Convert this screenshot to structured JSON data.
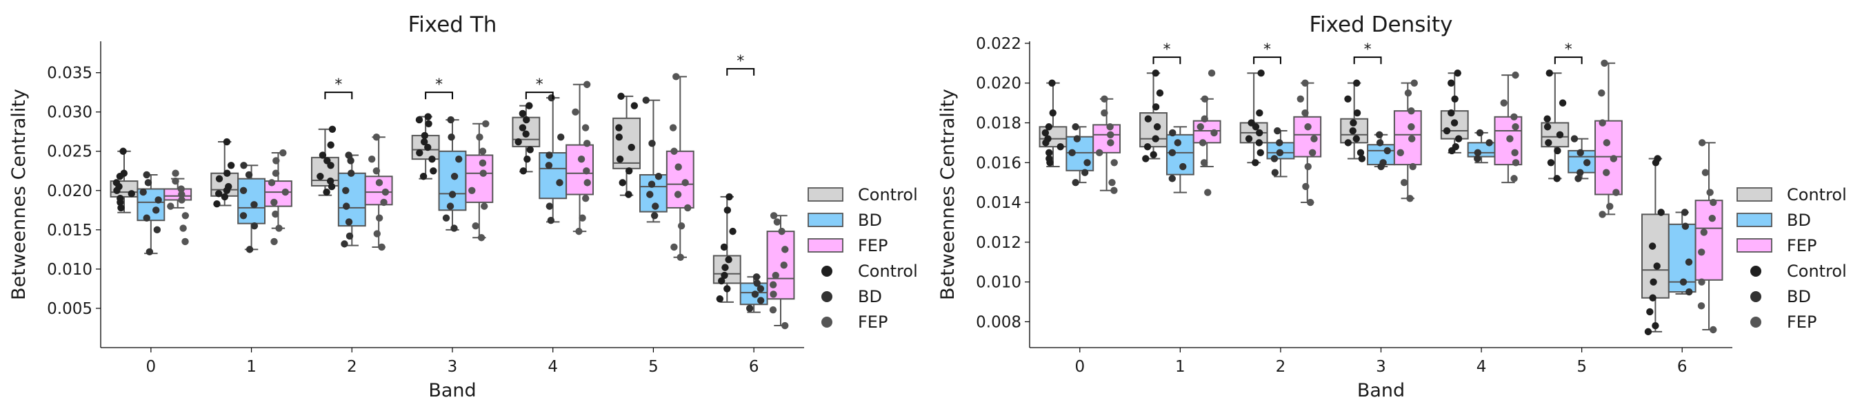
{
  "chart_data": [
    {
      "type": "box",
      "title": "Fixed Th",
      "xlabel": "Band",
      "ylabel": "Betweennes Centrality",
      "categories": [
        "0",
        "1",
        "2",
        "3",
        "4",
        "5",
        "6"
      ],
      "ylim": [
        0.0,
        0.039
      ],
      "yticks": [
        0.005,
        0.01,
        0.015,
        0.02,
        0.025,
        0.03,
        0.035
      ],
      "ytick_labels": [
        "0.005",
        "0.010",
        "0.015",
        "0.020",
        "0.025",
        "0.030",
        "0.035"
      ],
      "grid": false,
      "legend_position": "right",
      "significance": [
        {
          "band": "2",
          "label": "*",
          "y": 0.0325
        },
        {
          "band": "3",
          "label": "*",
          "y": 0.0325
        },
        {
          "band": "4",
          "label": "*",
          "y": 0.0325
        },
        {
          "band": "6",
          "label": "*",
          "y": 0.0355
        }
      ],
      "series": [
        {
          "name": "Control",
          "color": "#d3d3d3",
          "boxes": [
            {
              "q1": 0.0192,
              "median": 0.0198,
              "q3": 0.0212,
              "whislo": 0.0172,
              "whishi": 0.025
            },
            {
              "q1": 0.0193,
              "median": 0.0201,
              "q3": 0.0222,
              "whislo": 0.0181,
              "whishi": 0.0262
            },
            {
              "q1": 0.0206,
              "median": 0.0213,
              "q3": 0.0242,
              "whislo": 0.0194,
              "whishi": 0.0278
            },
            {
              "q1": 0.024,
              "median": 0.0252,
              "q3": 0.027,
              "whislo": 0.0215,
              "whishi": 0.0294
            },
            {
              "q1": 0.0256,
              "median": 0.0265,
              "q3": 0.0293,
              "whislo": 0.0224,
              "whishi": 0.0308
            },
            {
              "q1": 0.0228,
              "median": 0.0235,
              "q3": 0.0292,
              "whislo": 0.0194,
              "whishi": 0.032
            },
            {
              "q1": 0.0082,
              "median": 0.0094,
              "q3": 0.0117,
              "whislo": 0.0058,
              "whishi": 0.0192
            }
          ],
          "points": [
            [
              0.025,
              0.0222,
              0.0218,
              0.021,
              0.0205,
              0.02,
              0.0196,
              0.019,
              0.0185,
              0.0178
            ],
            [
              0.0262,
              0.0232,
              0.0222,
              0.0215,
              0.0205,
              0.02,
              0.0196,
              0.0192,
              0.0183
            ],
            [
              0.0278,
              0.0258,
              0.0245,
              0.0238,
              0.0232,
              0.0218,
              0.0212,
              0.0205,
              0.0198
            ],
            [
              0.0294,
              0.029,
              0.0285,
              0.027,
              0.0262,
              0.0255,
              0.0248,
              0.024,
              0.0225,
              0.0218
            ],
            [
              0.0308,
              0.0298,
              0.029,
              0.028,
              0.0272,
              0.0262,
              0.0252,
              0.024,
              0.0225
            ],
            [
              0.032,
              0.0308,
              0.028,
              0.0268,
              0.0255,
              0.024,
              0.0225,
              0.021,
              0.0195
            ],
            [
              0.0192,
              0.0175,
              0.0148,
              0.0128,
              0.0112,
              0.0102,
              0.0092,
              0.0085,
              0.0075,
              0.0062
            ]
          ]
        },
        {
          "name": "BD",
          "color": "#87cefa",
          "boxes": [
            {
              "q1": 0.0162,
              "median": 0.0185,
              "q3": 0.0202,
              "whislo": 0.012,
              "whishi": 0.022
            },
            {
              "q1": 0.0158,
              "median": 0.0178,
              "q3": 0.0215,
              "whislo": 0.0125,
              "whishi": 0.0232
            },
            {
              "q1": 0.0155,
              "median": 0.0178,
              "q3": 0.0222,
              "whislo": 0.013,
              "whishi": 0.0245
            },
            {
              "q1": 0.0175,
              "median": 0.0196,
              "q3": 0.025,
              "whislo": 0.015,
              "whishi": 0.029
            },
            {
              "q1": 0.019,
              "median": 0.0228,
              "q3": 0.0248,
              "whislo": 0.016,
              "whishi": 0.0318
            },
            {
              "q1": 0.0173,
              "median": 0.0205,
              "q3": 0.022,
              "whislo": 0.016,
              "whishi": 0.0315
            },
            {
              "q1": 0.0055,
              "median": 0.007,
              "q3": 0.0082,
              "whislo": 0.0045,
              "whishi": 0.009
            }
          ],
          "points": [
            [
              0.022,
              0.021,
              0.0198,
              0.0188,
              0.0175,
              0.0165,
              0.015,
              0.0122
            ],
            [
              0.0232,
              0.022,
              0.02,
              0.0182,
              0.0168,
              0.0155,
              0.0125
            ],
            [
              0.0245,
              0.0238,
              0.0222,
              0.02,
              0.018,
              0.016,
              0.0142,
              0.0132
            ],
            [
              0.029,
              0.0268,
              0.024,
              0.0218,
              0.0195,
              0.018,
              0.0165,
              0.0152
            ],
            [
              0.0318,
              0.0268,
              0.0245,
              0.0232,
              0.021,
              0.018,
              0.0162
            ],
            [
              0.0315,
              0.026,
              0.0218,
              0.0208,
              0.0195,
              0.018,
              0.0168
            ],
            [
              0.009,
              0.0082,
              0.0075,
              0.0068,
              0.006,
              0.005
            ]
          ]
        },
        {
          "name": "FEP",
          "color": "#ffb3ff",
          "boxes": [
            {
              "q1": 0.0188,
              "median": 0.0193,
              "q3": 0.0202,
              "whislo": 0.0178,
              "whishi": 0.0215
            },
            {
              "q1": 0.018,
              "median": 0.0198,
              "q3": 0.0212,
              "whislo": 0.0152,
              "whishi": 0.0248
            },
            {
              "q1": 0.0182,
              "median": 0.0198,
              "q3": 0.0218,
              "whislo": 0.0128,
              "whishi": 0.0268
            },
            {
              "q1": 0.0185,
              "median": 0.0222,
              "q3": 0.0245,
              "whislo": 0.014,
              "whishi": 0.0285
            },
            {
              "q1": 0.0195,
              "median": 0.0222,
              "q3": 0.0258,
              "whislo": 0.0148,
              "whishi": 0.0335
            },
            {
              "q1": 0.0178,
              "median": 0.0208,
              "q3": 0.025,
              "whislo": 0.0115,
              "whishi": 0.0345
            },
            {
              "q1": 0.0062,
              "median": 0.0088,
              "q3": 0.0148,
              "whislo": 0.0028,
              "whishi": 0.0168
            }
          ],
          "points": [
            [
              0.0222,
              0.0212,
              0.0202,
              0.0195,
              0.0188,
              0.018,
              0.0168,
              0.0152,
              0.0135
            ],
            [
              0.0248,
              0.0238,
              0.0222,
              0.021,
              0.0198,
              0.0185,
              0.017,
              0.0152,
              0.0135
            ],
            [
              0.0268,
              0.024,
              0.0225,
              0.021,
              0.0198,
              0.0185,
              0.0165,
              0.0145,
              0.0128
            ],
            [
              0.0285,
              0.0268,
              0.025,
              0.0235,
              0.0222,
              0.02,
              0.018,
              0.0155,
              0.014
            ],
            [
              0.0335,
              0.03,
              0.028,
              0.026,
              0.024,
              0.0225,
              0.021,
              0.019,
              0.0165,
              0.0148
            ],
            [
              0.0345,
              0.028,
              0.025,
              0.023,
              0.021,
              0.0195,
              0.0178,
              0.0155,
              0.0128,
              0.0115
            ],
            [
              0.0168,
              0.016,
              0.0148,
              0.0125,
              0.0105,
              0.0092,
              0.008,
              0.0068,
              0.0048,
              0.0028
            ]
          ]
        }
      ]
    },
    {
      "type": "box",
      "title": "Fixed Density",
      "xlabel": "Band",
      "ylabel": "Betweennes Centrality",
      "categories": [
        "0",
        "1",
        "2",
        "3",
        "4",
        "5",
        "6"
      ],
      "ylim": [
        0.0067,
        0.0221
      ],
      "yticks": [
        0.008,
        0.01,
        0.012,
        0.014,
        0.016,
        0.018,
        0.02,
        0.022
      ],
      "ytick_labels": [
        "0.008",
        "0.010",
        "0.012",
        "0.014",
        "0.016",
        "0.018",
        "0.020",
        "0.022"
      ],
      "grid": false,
      "legend_position": "right",
      "significance": [
        {
          "band": "1",
          "label": "*",
          "y": 0.0213
        },
        {
          "band": "2",
          "label": "*",
          "y": 0.0213
        },
        {
          "band": "3",
          "label": "*",
          "y": 0.0213
        },
        {
          "band": "5",
          "label": "*",
          "y": 0.0213
        }
      ],
      "series": [
        {
          "name": "Control",
          "color": "#d3d3d3",
          "boxes": [
            {
              "q1": 0.0168,
              "median": 0.0172,
              "q3": 0.0178,
              "whislo": 0.0158,
              "whishi": 0.02
            },
            {
              "q1": 0.0168,
              "median": 0.0172,
              "q3": 0.0185,
              "whislo": 0.0162,
              "whishi": 0.0205
            },
            {
              "q1": 0.017,
              "median": 0.0175,
              "q3": 0.018,
              "whislo": 0.016,
              "whishi": 0.0205
            },
            {
              "q1": 0.017,
              "median": 0.0174,
              "q3": 0.0182,
              "whislo": 0.0162,
              "whishi": 0.02
            },
            {
              "q1": 0.0172,
              "median": 0.0176,
              "q3": 0.0186,
              "whislo": 0.0165,
              "whishi": 0.0205
            },
            {
              "q1": 0.0168,
              "median": 0.0173,
              "q3": 0.018,
              "whislo": 0.0152,
              "whishi": 0.0205
            },
            {
              "q1": 0.0092,
              "median": 0.0106,
              "q3": 0.0134,
              "whislo": 0.0075,
              "whishi": 0.0162
            }
          ],
          "points": [
            [
              0.02,
              0.0185,
              0.0178,
              0.0175,
              0.0172,
              0.017,
              0.0168,
              0.0165,
              0.0162,
              0.016
            ],
            [
              0.0205,
              0.0195,
              0.0188,
              0.0182,
              0.0178,
              0.0172,
              0.0168,
              0.0164,
              0.0162
            ],
            [
              0.0205,
              0.0185,
              0.018,
              0.0178,
              0.0175,
              0.0172,
              0.017,
              0.0165,
              0.016
            ],
            [
              0.02,
              0.0192,
              0.0185,
              0.018,
              0.0176,
              0.0172,
              0.017,
              0.0165,
              0.0162
            ],
            [
              0.0205,
              0.02,
              0.0192,
              0.0185,
              0.018,
              0.0176,
              0.0172,
              0.0168,
              0.0166
            ],
            [
              0.0205,
              0.019,
              0.0182,
              0.0178,
              0.0174,
              0.017,
              0.0166,
              0.016,
              0.0152
            ],
            [
              0.0162,
              0.016,
              0.0135,
              0.0118,
              0.0108,
              0.01,
              0.0092,
              0.0085,
              0.0078,
              0.0075
            ]
          ]
        },
        {
          "name": "BD",
          "color": "#87cefa",
          "boxes": [
            {
              "q1": 0.0156,
              "median": 0.0165,
              "q3": 0.0173,
              "whislo": 0.015,
              "whishi": 0.0178
            },
            {
              "q1": 0.0154,
              "median": 0.0165,
              "q3": 0.0174,
              "whislo": 0.0145,
              "whishi": 0.0178
            },
            {
              "q1": 0.0162,
              "median": 0.0165,
              "q3": 0.017,
              "whislo": 0.0153,
              "whishi": 0.0176
            },
            {
              "q1": 0.0159,
              "median": 0.0166,
              "q3": 0.0169,
              "whislo": 0.0158,
              "whishi": 0.0174
            },
            {
              "q1": 0.0163,
              "median": 0.0165,
              "q3": 0.017,
              "whislo": 0.016,
              "whishi": 0.0175
            },
            {
              "q1": 0.0155,
              "median": 0.0163,
              "q3": 0.0166,
              "whislo": 0.0152,
              "whishi": 0.0172
            },
            {
              "q1": 0.0095,
              "median": 0.01,
              "q3": 0.0129,
              "whislo": 0.0094,
              "whishi": 0.0135
            }
          ],
          "points": [
            [
              0.0178,
              0.0172,
              0.0165,
              0.016,
              0.0155,
              0.015
            ],
            [
              0.0175,
              0.017,
              0.0165,
              0.0158,
              0.0152
            ],
            [
              0.0176,
              0.017,
              0.0165,
              0.0162,
              0.0155
            ],
            [
              0.0174,
              0.017,
              0.0166,
              0.016,
              0.0158
            ],
            [
              0.0175,
              0.017,
              0.0165,
              0.0162
            ],
            [
              0.0172,
              0.0165,
              0.016,
              0.0155,
              0.0152
            ],
            [
              0.0135,
              0.0128,
              0.011,
              0.01,
              0.0095
            ]
          ]
        },
        {
          "name": "FEP",
          "color": "#ffb3ff",
          "boxes": [
            {
              "q1": 0.0165,
              "median": 0.0174,
              "q3": 0.0179,
              "whislo": 0.0146,
              "whishi": 0.0192
            },
            {
              "q1": 0.017,
              "median": 0.0176,
              "q3": 0.0181,
              "whislo": 0.0158,
              "whishi": 0.0192
            },
            {
              "q1": 0.0163,
              "median": 0.0174,
              "q3": 0.0183,
              "whislo": 0.014,
              "whishi": 0.02
            },
            {
              "q1": 0.0159,
              "median": 0.0174,
              "q3": 0.0186,
              "whislo": 0.0142,
              "whishi": 0.02
            },
            {
              "q1": 0.0159,
              "median": 0.0176,
              "q3": 0.0183,
              "whislo": 0.015,
              "whishi": 0.0204
            },
            {
              "q1": 0.0144,
              "median": 0.0163,
              "q3": 0.0181,
              "whislo": 0.0134,
              "whishi": 0.021
            },
            {
              "q1": 0.0101,
              "median": 0.0127,
              "q3": 0.0141,
              "whislo": 0.0076,
              "whishi": 0.017
            }
          ],
          "points": [
            [
              0.0192,
              0.0185,
              0.0178,
              0.0174,
              0.017,
              0.0165,
              0.016,
              0.015,
              0.0146
            ],
            [
              0.0205,
              0.0192,
              0.0182,
              0.0178,
              0.0175,
              0.017,
              0.016,
              0.0145
            ],
            [
              0.02,
              0.0192,
              0.0185,
              0.0178,
              0.0172,
              0.0165,
              0.0158,
              0.0148,
              0.014
            ],
            [
              0.02,
              0.0195,
              0.0186,
              0.0178,
              0.0172,
              0.0165,
              0.0158,
              0.015,
              0.0142
            ],
            [
              0.0204,
              0.019,
              0.0183,
              0.0178,
              0.0172,
              0.0165,
              0.016,
              0.0152
            ],
            [
              0.021,
              0.0195,
              0.018,
              0.017,
              0.0162,
              0.0155,
              0.0145,
              0.0138,
              0.0134
            ],
            [
              0.017,
              0.0155,
              0.0145,
              0.014,
              0.0132,
              0.0125,
              0.0115,
              0.01,
              0.0088,
              0.0076
            ]
          ]
        }
      ]
    }
  ]
}
